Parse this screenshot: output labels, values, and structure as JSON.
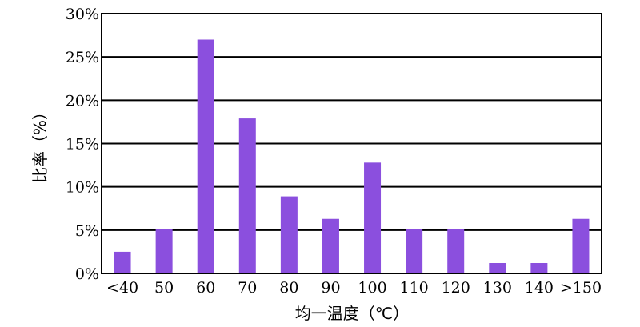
{
  "chart_data": {
    "type": "bar",
    "title": "",
    "xlabel": "均一温度（℃）",
    "ylabel": "比率（%）",
    "categories": [
      "<40",
      "50",
      "60",
      "70",
      "80",
      "90",
      "100",
      "110",
      "120",
      "130",
      "140",
      ">150"
    ],
    "series": [
      {
        "values": [
          2.5,
          5.1,
          27.0,
          17.9,
          8.9,
          6.3,
          12.8,
          5.1,
          5.1,
          1.2,
          1.2,
          6.3
        ]
      }
    ],
    "ylim": [
      0,
      30
    ],
    "yticks": [
      0,
      5,
      10,
      15,
      20,
      25,
      30
    ],
    "ytick_labels": [
      "0%",
      "5%",
      "10%",
      "15%",
      "20%",
      "25%",
      "30%"
    ],
    "grid": true,
    "bar_color": "#8B4FDE"
  }
}
